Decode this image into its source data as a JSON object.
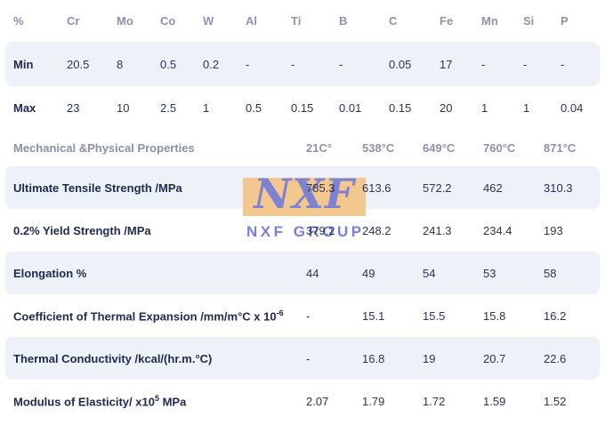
{
  "colors": {
    "background": "#ffffff",
    "stripe": "#edf1f8",
    "header_text": "#8d93a7",
    "body_text": "#202b4e",
    "watermark_box": "#f3c88e",
    "watermark_text": "#7a80d6"
  },
  "composition": {
    "header": [
      "%",
      "Cr",
      "Mo",
      "Co",
      "W",
      "Al",
      "Ti",
      "B",
      "C",
      "Fe",
      "Mn",
      "Si",
      "P"
    ],
    "rows": [
      {
        "label": "Min",
        "values": [
          "20.5",
          "8",
          "0.5",
          "0.2",
          "-",
          "-",
          "-",
          "0.05",
          "17",
          "-",
          "-",
          "-"
        ]
      },
      {
        "label": "Max",
        "values": [
          "23",
          "10",
          "2.5",
          "1",
          "0.5",
          "0.15",
          "0.01",
          "0.15",
          "20",
          "1",
          "1",
          "0.04"
        ]
      }
    ]
  },
  "mechanical": {
    "section_title": "Mechanical &Physical Properties",
    "temps": [
      "21C°",
      "538°C",
      "649°C",
      "760°C",
      "871°C"
    ],
    "rows": [
      {
        "label": "Ultimate Tensile Strength /MPa",
        "values": [
          "785.3",
          "613.6",
          "572.2",
          "462",
          "310.3"
        ]
      },
      {
        "label": "0.2% Yield Strength /MPa",
        "values": [
          "379.2",
          "248.2",
          "241.3",
          "234.4",
          "193"
        ]
      },
      {
        "label": "Elongation %",
        "values": [
          "44",
          "49",
          "54",
          "53",
          "58"
        ]
      },
      {
        "label": "Coefficient of Thermal Expansion /mm/m°C x 10",
        "sup": "-6",
        "values": [
          "-",
          "15.1",
          "15.5",
          "15.8",
          "16.2"
        ]
      },
      {
        "label": "Thermal Conductivity /kcal/(hr.m.°C)",
        "values": [
          "-",
          "16.8",
          "19",
          "20.7",
          "22.6"
        ]
      },
      {
        "label": "Modulus of Elasticity/ x10",
        "sup": "5",
        "suffix": " MPa",
        "values": [
          "2.07",
          "1.79",
          "1.72",
          "1.59",
          "1.52"
        ]
      }
    ]
  },
  "watermark": {
    "logo_text": "NXF",
    "subtext": "NXF GROUP"
  }
}
